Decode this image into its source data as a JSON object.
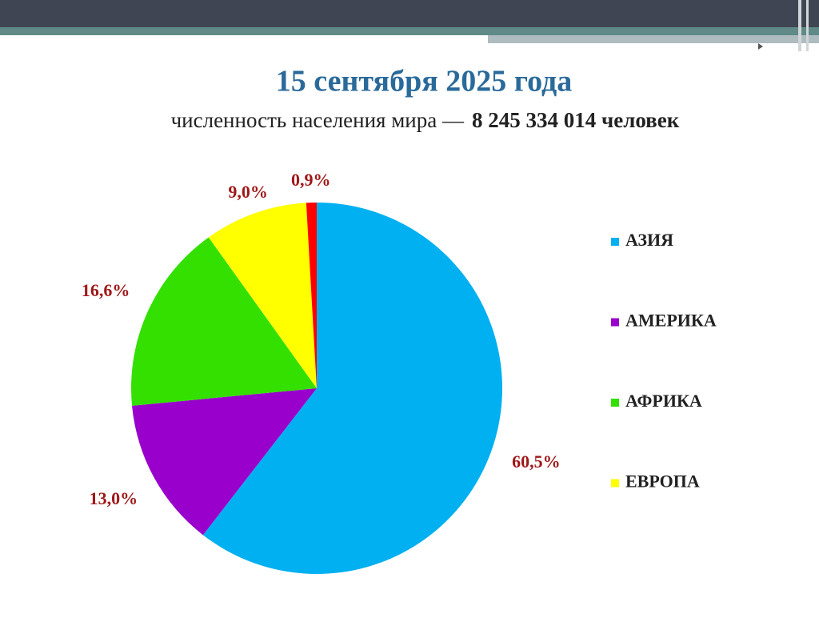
{
  "chart_data": {
    "type": "pie",
    "title": "15 сентября 2025 года",
    "subtitle": "численность населения мира —",
    "subtitle_bold": "8 245 334 014 человек",
    "categories": [
      "АЗИЯ",
      "АМЕРИКА",
      "АФРИКА",
      "ЕВРОПА",
      null
    ],
    "values": [
      60.5,
      13.0,
      16.6,
      9.0,
      0.9
    ],
    "value_labels": [
      "60,5%",
      "13,0%",
      "16,6%",
      "9,0%",
      "0,9%"
    ],
    "colors": [
      "#00b0f0",
      "#9900cc",
      "#33e000",
      "#ffff00",
      "#ff0000"
    ],
    "legend": "right"
  }
}
